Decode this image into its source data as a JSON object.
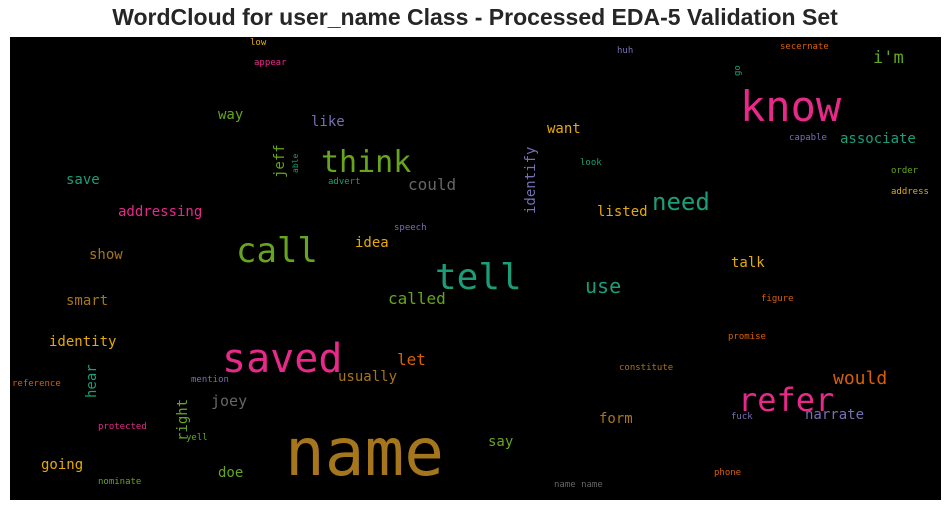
{
  "title": "WordCloud for user_name Class - Processed EDA-5 Validation Set",
  "chart_data": {
    "type": "wordcloud",
    "background": "#000000",
    "words": [
      {
        "text": "name",
        "size": 66,
        "color": "#a6761d"
      },
      {
        "text": "know",
        "size": 42,
        "color": "#e7298a"
      },
      {
        "text": "saved",
        "size": 40,
        "color": "#e7298a"
      },
      {
        "text": "tell",
        "size": 36,
        "color": "#1b9e77"
      },
      {
        "text": "call",
        "size": 34,
        "color": "#66a61e"
      },
      {
        "text": "refer",
        "size": 32,
        "color": "#e7298a"
      },
      {
        "text": "think",
        "size": 30,
        "color": "#66a61e"
      },
      {
        "text": "need",
        "size": 24,
        "color": "#1b9e77"
      },
      {
        "text": "use",
        "size": 20,
        "color": "#1b9e77"
      },
      {
        "text": "would",
        "size": 18,
        "color": "#d95f02"
      },
      {
        "text": "i'm",
        "size": 17,
        "color": "#66a61e"
      },
      {
        "text": "let",
        "size": 16,
        "color": "#d95f02"
      },
      {
        "text": "called",
        "size": 16,
        "color": "#66a61e"
      },
      {
        "text": "could",
        "size": 16,
        "color": "#666666"
      },
      {
        "text": "joey",
        "size": 15,
        "color": "#666666"
      },
      {
        "text": "associate",
        "size": 14,
        "color": "#1b9e77"
      },
      {
        "text": "narrate",
        "size": 14,
        "color": "#7570b3"
      },
      {
        "text": "want",
        "size": 14,
        "color": "#e6ab02"
      },
      {
        "text": "usually",
        "size": 14,
        "color": "#a6761d"
      },
      {
        "text": "save",
        "size": 14,
        "color": "#1b9e77"
      },
      {
        "text": "addressing",
        "size": 14,
        "color": "#e7298a"
      },
      {
        "text": "identity",
        "size": 14,
        "color": "#e6ab02"
      },
      {
        "text": "going",
        "size": 14,
        "color": "#e6ab02"
      },
      {
        "text": "doe",
        "size": 14,
        "color": "#66a61e"
      },
      {
        "text": "say",
        "size": 14,
        "color": "#66a61e"
      },
      {
        "text": "form",
        "size": 14,
        "color": "#a6761d"
      },
      {
        "text": "idea",
        "size": 14,
        "color": "#e6ab02"
      },
      {
        "text": "show",
        "size": 14,
        "color": "#a6761d"
      },
      {
        "text": "smart",
        "size": 14,
        "color": "#a6761d"
      },
      {
        "text": "talk",
        "size": 14,
        "color": "#e6ab02"
      },
      {
        "text": "listed",
        "size": 14,
        "color": "#e6ab02"
      },
      {
        "text": "like",
        "size": 14,
        "color": "#7570b3"
      },
      {
        "text": "way",
        "size": 14,
        "color": "#66a61e"
      },
      {
        "text": "identify",
        "size": 14,
        "color": "#7570b3"
      },
      {
        "text": "jeff",
        "size": 14,
        "color": "#66a61e"
      },
      {
        "text": "right",
        "size": 14,
        "color": "#66a61e"
      },
      {
        "text": "hear",
        "size": 14,
        "color": "#1b9e77"
      },
      {
        "text": "promise",
        "size": 9,
        "color": "#d95f02"
      },
      {
        "text": "figure",
        "size": 9,
        "color": "#d95f02"
      },
      {
        "text": "constitute",
        "size": 9,
        "color": "#a6761d"
      },
      {
        "text": "capable",
        "size": 9,
        "color": "#7570b3"
      },
      {
        "text": "order",
        "size": 9,
        "color": "#66a61e"
      },
      {
        "text": "address",
        "size": 9,
        "color": "#e6ab02"
      },
      {
        "text": "secernate",
        "size": 9,
        "color": "#d95f02"
      },
      {
        "text": "huh",
        "size": 9,
        "color": "#7570b3"
      },
      {
        "text": "go",
        "size": 9,
        "color": "#1b9e77"
      },
      {
        "text": "look",
        "size": 9,
        "color": "#1b9e77"
      },
      {
        "text": "speech",
        "size": 9,
        "color": "#7570b3"
      },
      {
        "text": "advert",
        "size": 9,
        "color": "#1b9e77"
      },
      {
        "text": "able",
        "size": 8,
        "color": "#1b9e77"
      },
      {
        "text": "low",
        "size": 9,
        "color": "#e6ab02"
      },
      {
        "text": "appear",
        "size": 9,
        "color": "#e7298a"
      },
      {
        "text": "reference",
        "size": 9,
        "color": "#d95f02"
      },
      {
        "text": "mention",
        "size": 9,
        "color": "#7570b3"
      },
      {
        "text": "protected",
        "size": 9,
        "color": "#e7298a"
      },
      {
        "text": "yell",
        "size": 9,
        "color": "#66a61e"
      },
      {
        "text": "nominate",
        "size": 9,
        "color": "#66a61e"
      },
      {
        "text": "name name",
        "size": 9,
        "color": "#666666"
      },
      {
        "text": "fuck",
        "size": 9,
        "color": "#7570b3"
      },
      {
        "text": "phone",
        "size": 9,
        "color": "#d95f02"
      }
    ]
  }
}
